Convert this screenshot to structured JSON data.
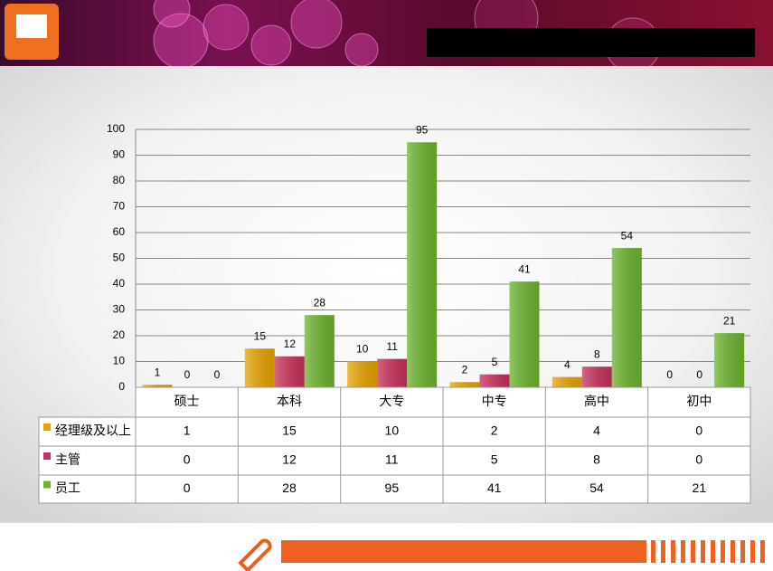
{
  "chart_data": {
    "type": "bar",
    "categories": [
      "硕士",
      "本科",
      "大专",
      "中专",
      "高中",
      "初中"
    ],
    "series": [
      {
        "name": "经理级及以上",
        "color": "#e8a400",
        "values": [
          1,
          15,
          10,
          2,
          4,
          0
        ]
      },
      {
        "name": "主管",
        "color": "#c8305a",
        "values": [
          0,
          12,
          11,
          5,
          8,
          0
        ]
      },
      {
        "name": "员工",
        "color": "#6cb42c",
        "values": [
          0,
          28,
          95,
          41,
          54,
          21
        ]
      }
    ],
    "ylim": [
      0,
      100
    ],
    "yticks": [
      0,
      10,
      20,
      30,
      40,
      50,
      60,
      70,
      80,
      90,
      100
    ],
    "grid": true
  }
}
